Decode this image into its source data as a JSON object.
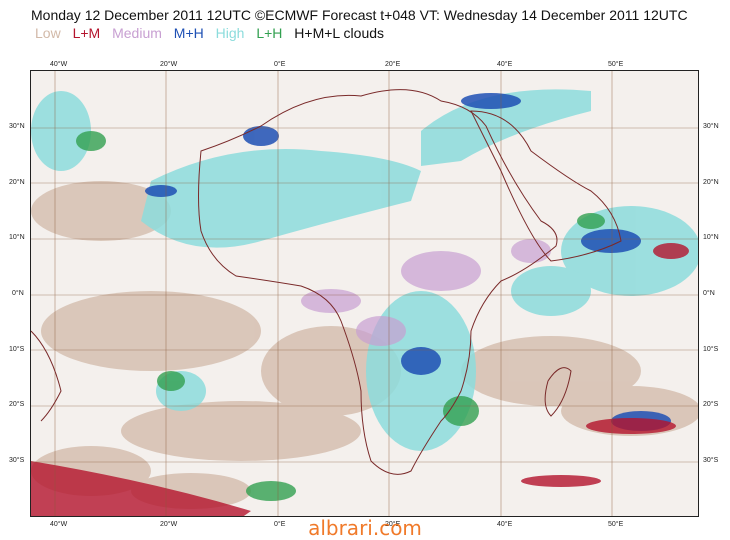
{
  "header": {
    "title": "Monday 12 December 2011 12UTC ©ECMWF Forecast t+048 VT: Wednesday 14 December 2011 12UTC"
  },
  "legend": {
    "items": [
      {
        "label": "Low",
        "color": "#d2b9a8"
      },
      {
        "label": "L+M",
        "color": "#b4142d"
      },
      {
        "label": "Medium",
        "color": "#c8a0d2"
      },
      {
        "label": "M+H",
        "color": "#1e50b4"
      },
      {
        "label": "High",
        "color": "#8cdcdc"
      },
      {
        "label": "L+H",
        "color": "#32a050"
      },
      {
        "label": "H+M+L clouds",
        "color": "#111111"
      }
    ]
  },
  "map": {
    "lon_labels": [
      "40°W",
      "20°W",
      "0°E",
      "20°E",
      "40°E",
      "50°E"
    ],
    "lat_labels": [
      "30°N",
      "20°N",
      "10°N",
      "0°N",
      "10°S",
      "20°S",
      "30°S"
    ]
  },
  "watermark": {
    "text": "albrari.com"
  }
}
